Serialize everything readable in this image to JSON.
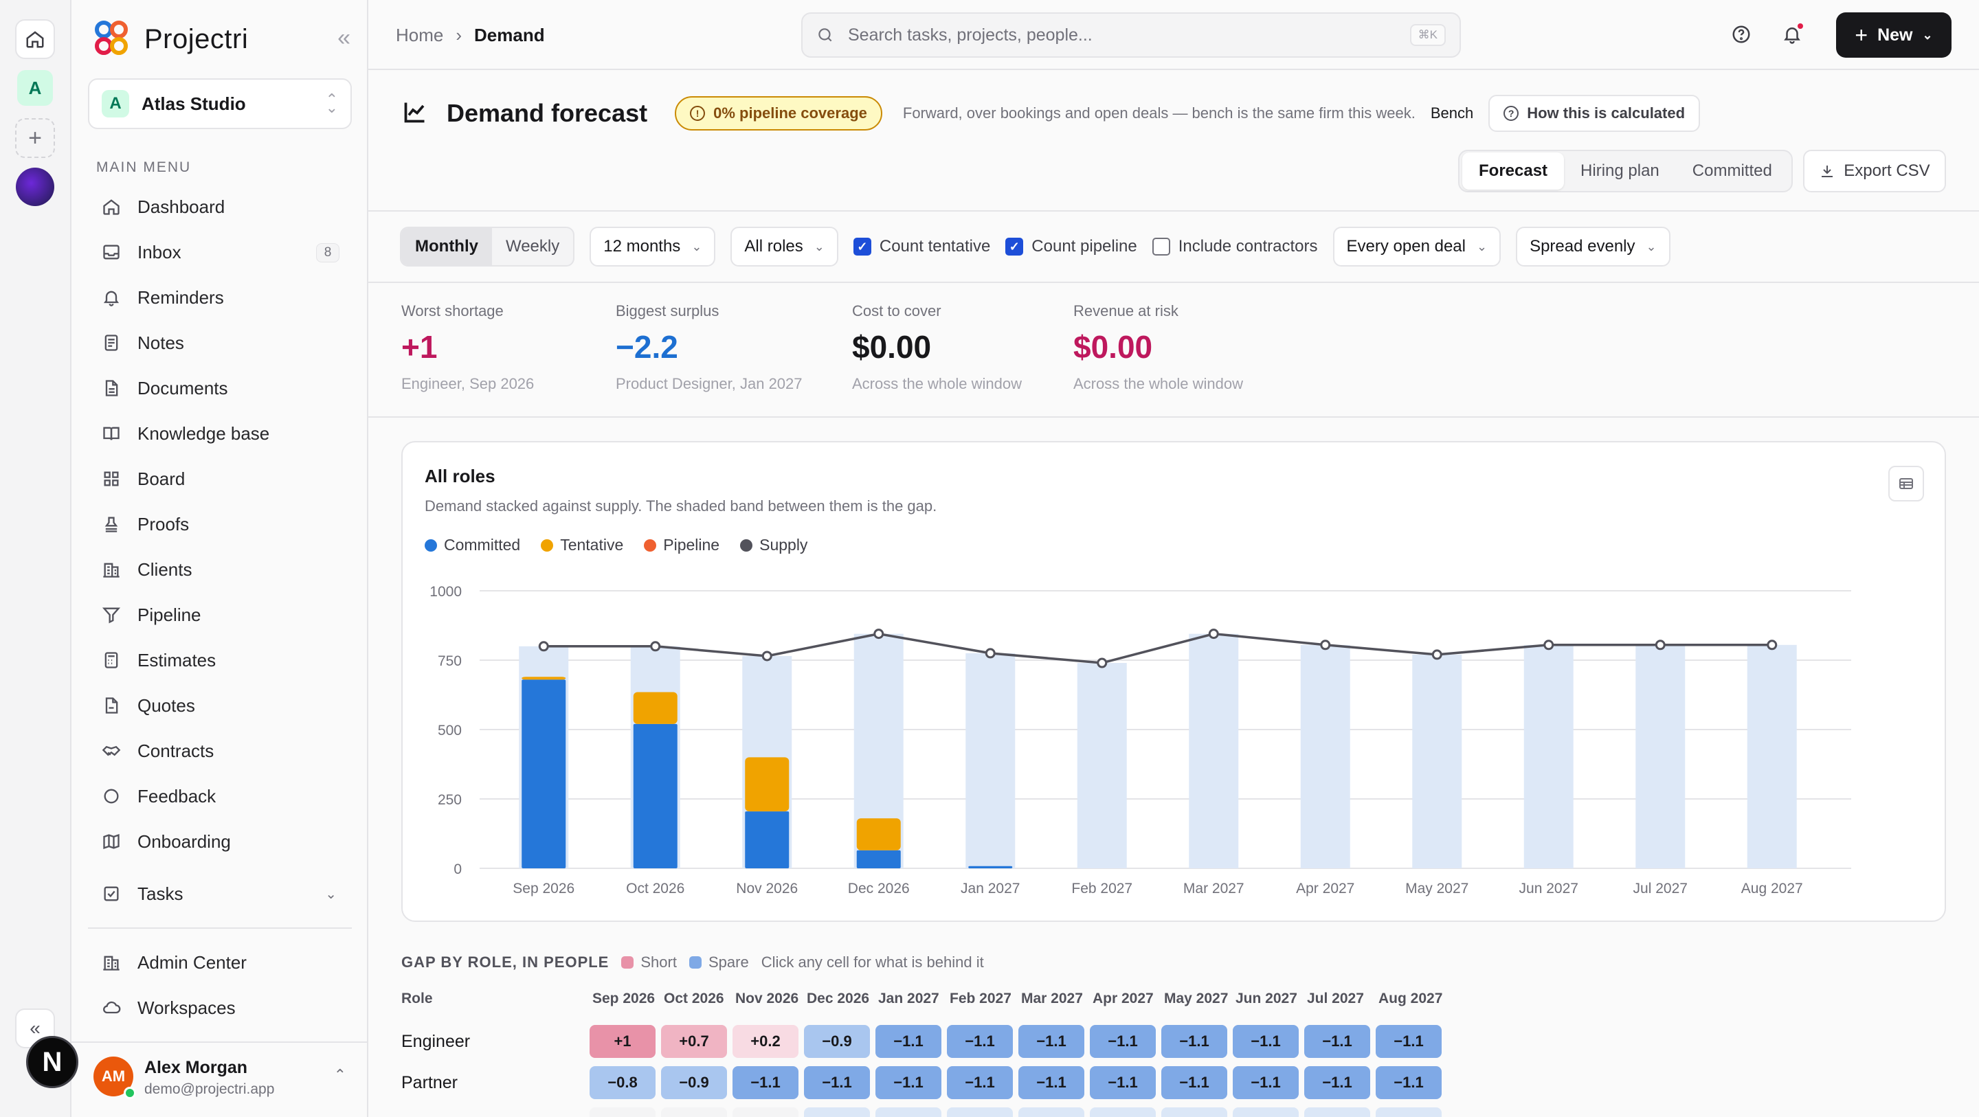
{
  "app": {
    "name": "Projectri"
  },
  "rail": {
    "workspace_initial": "A",
    "next_badge": "N"
  },
  "workspace": {
    "initial": "A",
    "name": "Atlas Studio"
  },
  "menu": {
    "title": "MAIN MENU",
    "items": [
      {
        "label": "Dashboard",
        "icon": "home-icon"
      },
      {
        "label": "Inbox",
        "icon": "inbox-icon",
        "badge": "8"
      },
      {
        "label": "Reminders",
        "icon": "bell-icon"
      },
      {
        "label": "Notes",
        "icon": "note-icon"
      },
      {
        "label": "Documents",
        "icon": "document-icon"
      },
      {
        "label": "Knowledge base",
        "icon": "book-icon"
      },
      {
        "label": "Board",
        "icon": "board-icon"
      },
      {
        "label": "Proofs",
        "icon": "stamp-icon"
      },
      {
        "label": "Clients",
        "icon": "building-icon"
      },
      {
        "label": "Pipeline",
        "icon": "funnel-icon"
      },
      {
        "label": "Estimates",
        "icon": "calculator-icon"
      },
      {
        "label": "Quotes",
        "icon": "quote-icon"
      },
      {
        "label": "Contracts",
        "icon": "handshake-icon"
      },
      {
        "label": "Feedback",
        "icon": "chat-icon"
      },
      {
        "label": "Onboarding",
        "icon": "map-icon"
      }
    ],
    "tasks_label": "Tasks",
    "secondary": [
      {
        "label": "Admin Center",
        "icon": "building-icon"
      },
      {
        "label": "Workspaces",
        "icon": "cloud-icon"
      }
    ]
  },
  "user": {
    "initials": "AM",
    "name": "Alex Morgan",
    "email": "demo@projectri.app"
  },
  "topbar": {
    "breadcrumb_home": "Home",
    "breadcrumb_current": "Demand",
    "search_placeholder": "Search tasks, projects, people...",
    "search_shortcut": "⌘K",
    "new_label": "New"
  },
  "header": {
    "title": "Demand forecast",
    "coverage_badge": "0% pipeline coverage",
    "description": "Forward, over bookings and open deals — bench is the same firm this week.",
    "bench_link": "Bench",
    "how_label": "How this is calculated",
    "tabs": [
      "Forecast",
      "Hiring plan",
      "Committed"
    ],
    "active_tab": "Forecast",
    "export_label": "Export CSV"
  },
  "filters": {
    "granularity": [
      "Monthly",
      "Weekly"
    ],
    "granularity_active": "Monthly",
    "window": "12 months",
    "roles": "All roles",
    "count_tentative": {
      "label": "Count tentative",
      "checked": true
    },
    "count_pipeline": {
      "label": "Count pipeline",
      "checked": true
    },
    "include_contractors": {
      "label": "Include contractors",
      "checked": false
    },
    "deal_scope": "Every open deal",
    "spread": "Spread evenly"
  },
  "kpis": [
    {
      "label": "Worst shortage",
      "value": "+1",
      "sub": "Engineer, Sep 2026",
      "color": "#be185d"
    },
    {
      "label": "Biggest surplus",
      "value": "−2.2",
      "sub": "Product Designer, Jan 2027",
      "color": "#1d6fd1"
    },
    {
      "label": "Cost to cover",
      "value": "$0.00",
      "sub": "Across the whole window",
      "color": "#18181b"
    },
    {
      "label": "Revenue at risk",
      "value": "$0.00",
      "sub": "Across the whole window",
      "color": "#be185d"
    }
  ],
  "chart_card": {
    "title": "All roles",
    "subtitle": "Demand stacked against supply. The shaded band between them is the gap."
  },
  "colors": {
    "committed": "#2577d9",
    "tentative": "#f0a300",
    "pipeline": "#ef6030",
    "supply": "#52525b",
    "band": "#dde8f7",
    "short": "#e892a8",
    "spare": "#7fa9e6"
  },
  "chart_data": {
    "type": "bar",
    "stacked": true,
    "categories": [
      "Sep 2026",
      "Oct 2026",
      "Nov 2026",
      "Dec 2026",
      "Jan 2027",
      "Feb 2027",
      "Mar 2027",
      "Apr 2027",
      "May 2027",
      "Jun 2027",
      "Jul 2027",
      "Aug 2027"
    ],
    "series": [
      {
        "name": "Committed",
        "values": [
          680,
          520,
          205,
          65,
          8,
          0,
          0,
          0,
          0,
          0,
          0,
          0
        ]
      },
      {
        "name": "Tentative",
        "values": [
          10,
          115,
          195,
          115,
          0,
          0,
          0,
          0,
          0,
          0,
          0,
          0
        ]
      },
      {
        "name": "Pipeline",
        "values": [
          0,
          0,
          0,
          0,
          0,
          0,
          0,
          0,
          0,
          0,
          0,
          0
        ]
      }
    ],
    "supply": {
      "name": "Supply",
      "values": [
        800,
        800,
        765,
        845,
        775,
        740,
        845,
        805,
        770,
        805,
        805,
        805
      ]
    },
    "yticks": [
      0,
      250,
      500,
      750,
      1000
    ],
    "ylim": [
      0,
      1000
    ],
    "legend_position": "top-left",
    "grid": true
  },
  "gap_table": {
    "title": "GAP BY ROLE, IN PEOPLE",
    "legend_short": "Short",
    "legend_spare": "Spare",
    "hint": "Click any cell for what is behind it",
    "role_header": "Role",
    "columns": [
      "Sep 2026",
      "Oct 2026",
      "Nov 2026",
      "Dec 2026",
      "Jan 2027",
      "Feb 2027",
      "Mar 2027",
      "Apr 2027",
      "May 2027",
      "Jun 2027",
      "Jul 2027",
      "Aug 2027"
    ],
    "rows": [
      {
        "role": "Engineer",
        "values": [
          "+1",
          "+0.7",
          "+0.2",
          "−0.9",
          "−1.1",
          "−1.1",
          "−1.1",
          "−1.1",
          "−1.1",
          "−1.1",
          "−1.1",
          "−1.1"
        ]
      },
      {
        "role": "Partner",
        "values": [
          "−0.8",
          "−0.9",
          "−1.1",
          "−1.1",
          "−1.1",
          "−1.1",
          "−1.1",
          "−1.1",
          "−1.1",
          "−1.1",
          "−1.1",
          "−1.1"
        ]
      }
    ]
  }
}
